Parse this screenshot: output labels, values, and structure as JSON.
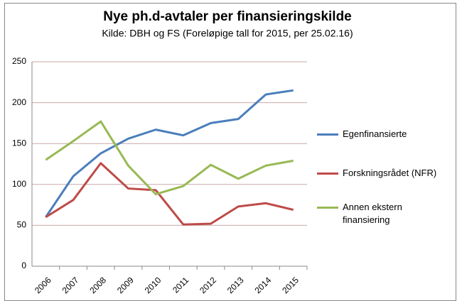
{
  "chart_data": {
    "type": "line",
    "title": "Nye ph.d-avtaler per finansieringskilde",
    "subtitle": "Kilde: DBH og FS (Foreløpige tall for 2015, per 25.02.16)",
    "categories": [
      "2006",
      "2007",
      "2008",
      "2009",
      "2010",
      "2011",
      "2012",
      "2013",
      "2014",
      "2015"
    ],
    "series": [
      {
        "name": "Egenfinansierte",
        "color": "#4a7ebb",
        "values": [
          60,
          110,
          138,
          156,
          167,
          160,
          175,
          180,
          210,
          215
        ]
      },
      {
        "name": "Forskningsrådet (NFR)",
        "color": "#be4b48",
        "values": [
          60,
          81,
          126,
          95,
          93,
          51,
          52,
          73,
          77,
          69
        ]
      },
      {
        "name": "Annen ekstern finansiering",
        "color": "#98b954",
        "values": [
          130,
          153,
          177,
          123,
          88,
          98,
          124,
          107,
          123,
          129
        ]
      }
    ],
    "ylim": [
      0,
      250
    ],
    "yticks": [
      0,
      50,
      100,
      150,
      200,
      250
    ],
    "grid": true,
    "legend": "right"
  }
}
